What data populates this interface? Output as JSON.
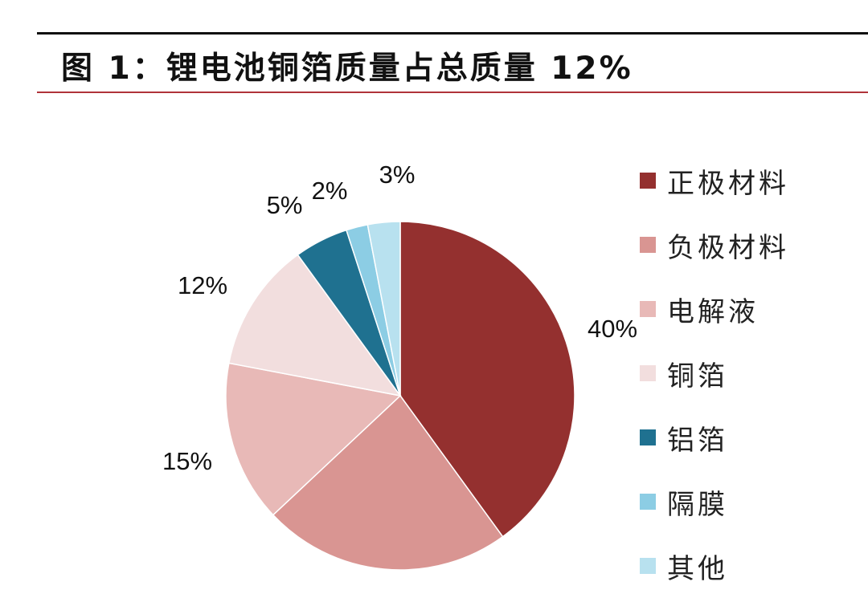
{
  "header": {
    "title": "图 1：锂电池铜箔质量占总质量 12%"
  },
  "chart_data": {
    "type": "pie",
    "title": "图 1：锂电池铜箔质量占总质量 12%",
    "slices": [
      {
        "name": "正极材料",
        "value": 40,
        "label": "40%",
        "color": "#94302f"
      },
      {
        "name": "负极材料",
        "value": 23,
        "label": "",
        "color": "#d99592"
      },
      {
        "name": "电解液",
        "value": 15,
        "label": "15%",
        "color": "#e8b9b7"
      },
      {
        "name": "铜箔",
        "value": 12,
        "label": "12%",
        "color": "#f2dede"
      },
      {
        "name": "铝箔",
        "value": 5,
        "label": "5%",
        "color": "#1f7190"
      },
      {
        "name": "隔膜",
        "value": 2,
        "label": "2%",
        "color": "#8ccde4"
      },
      {
        "name": "其他",
        "value": 3,
        "label": "3%",
        "color": "#b8e1ef"
      }
    ],
    "start_angle": "12 o'clock",
    "direction": "clockwise",
    "legend_position": "right"
  }
}
